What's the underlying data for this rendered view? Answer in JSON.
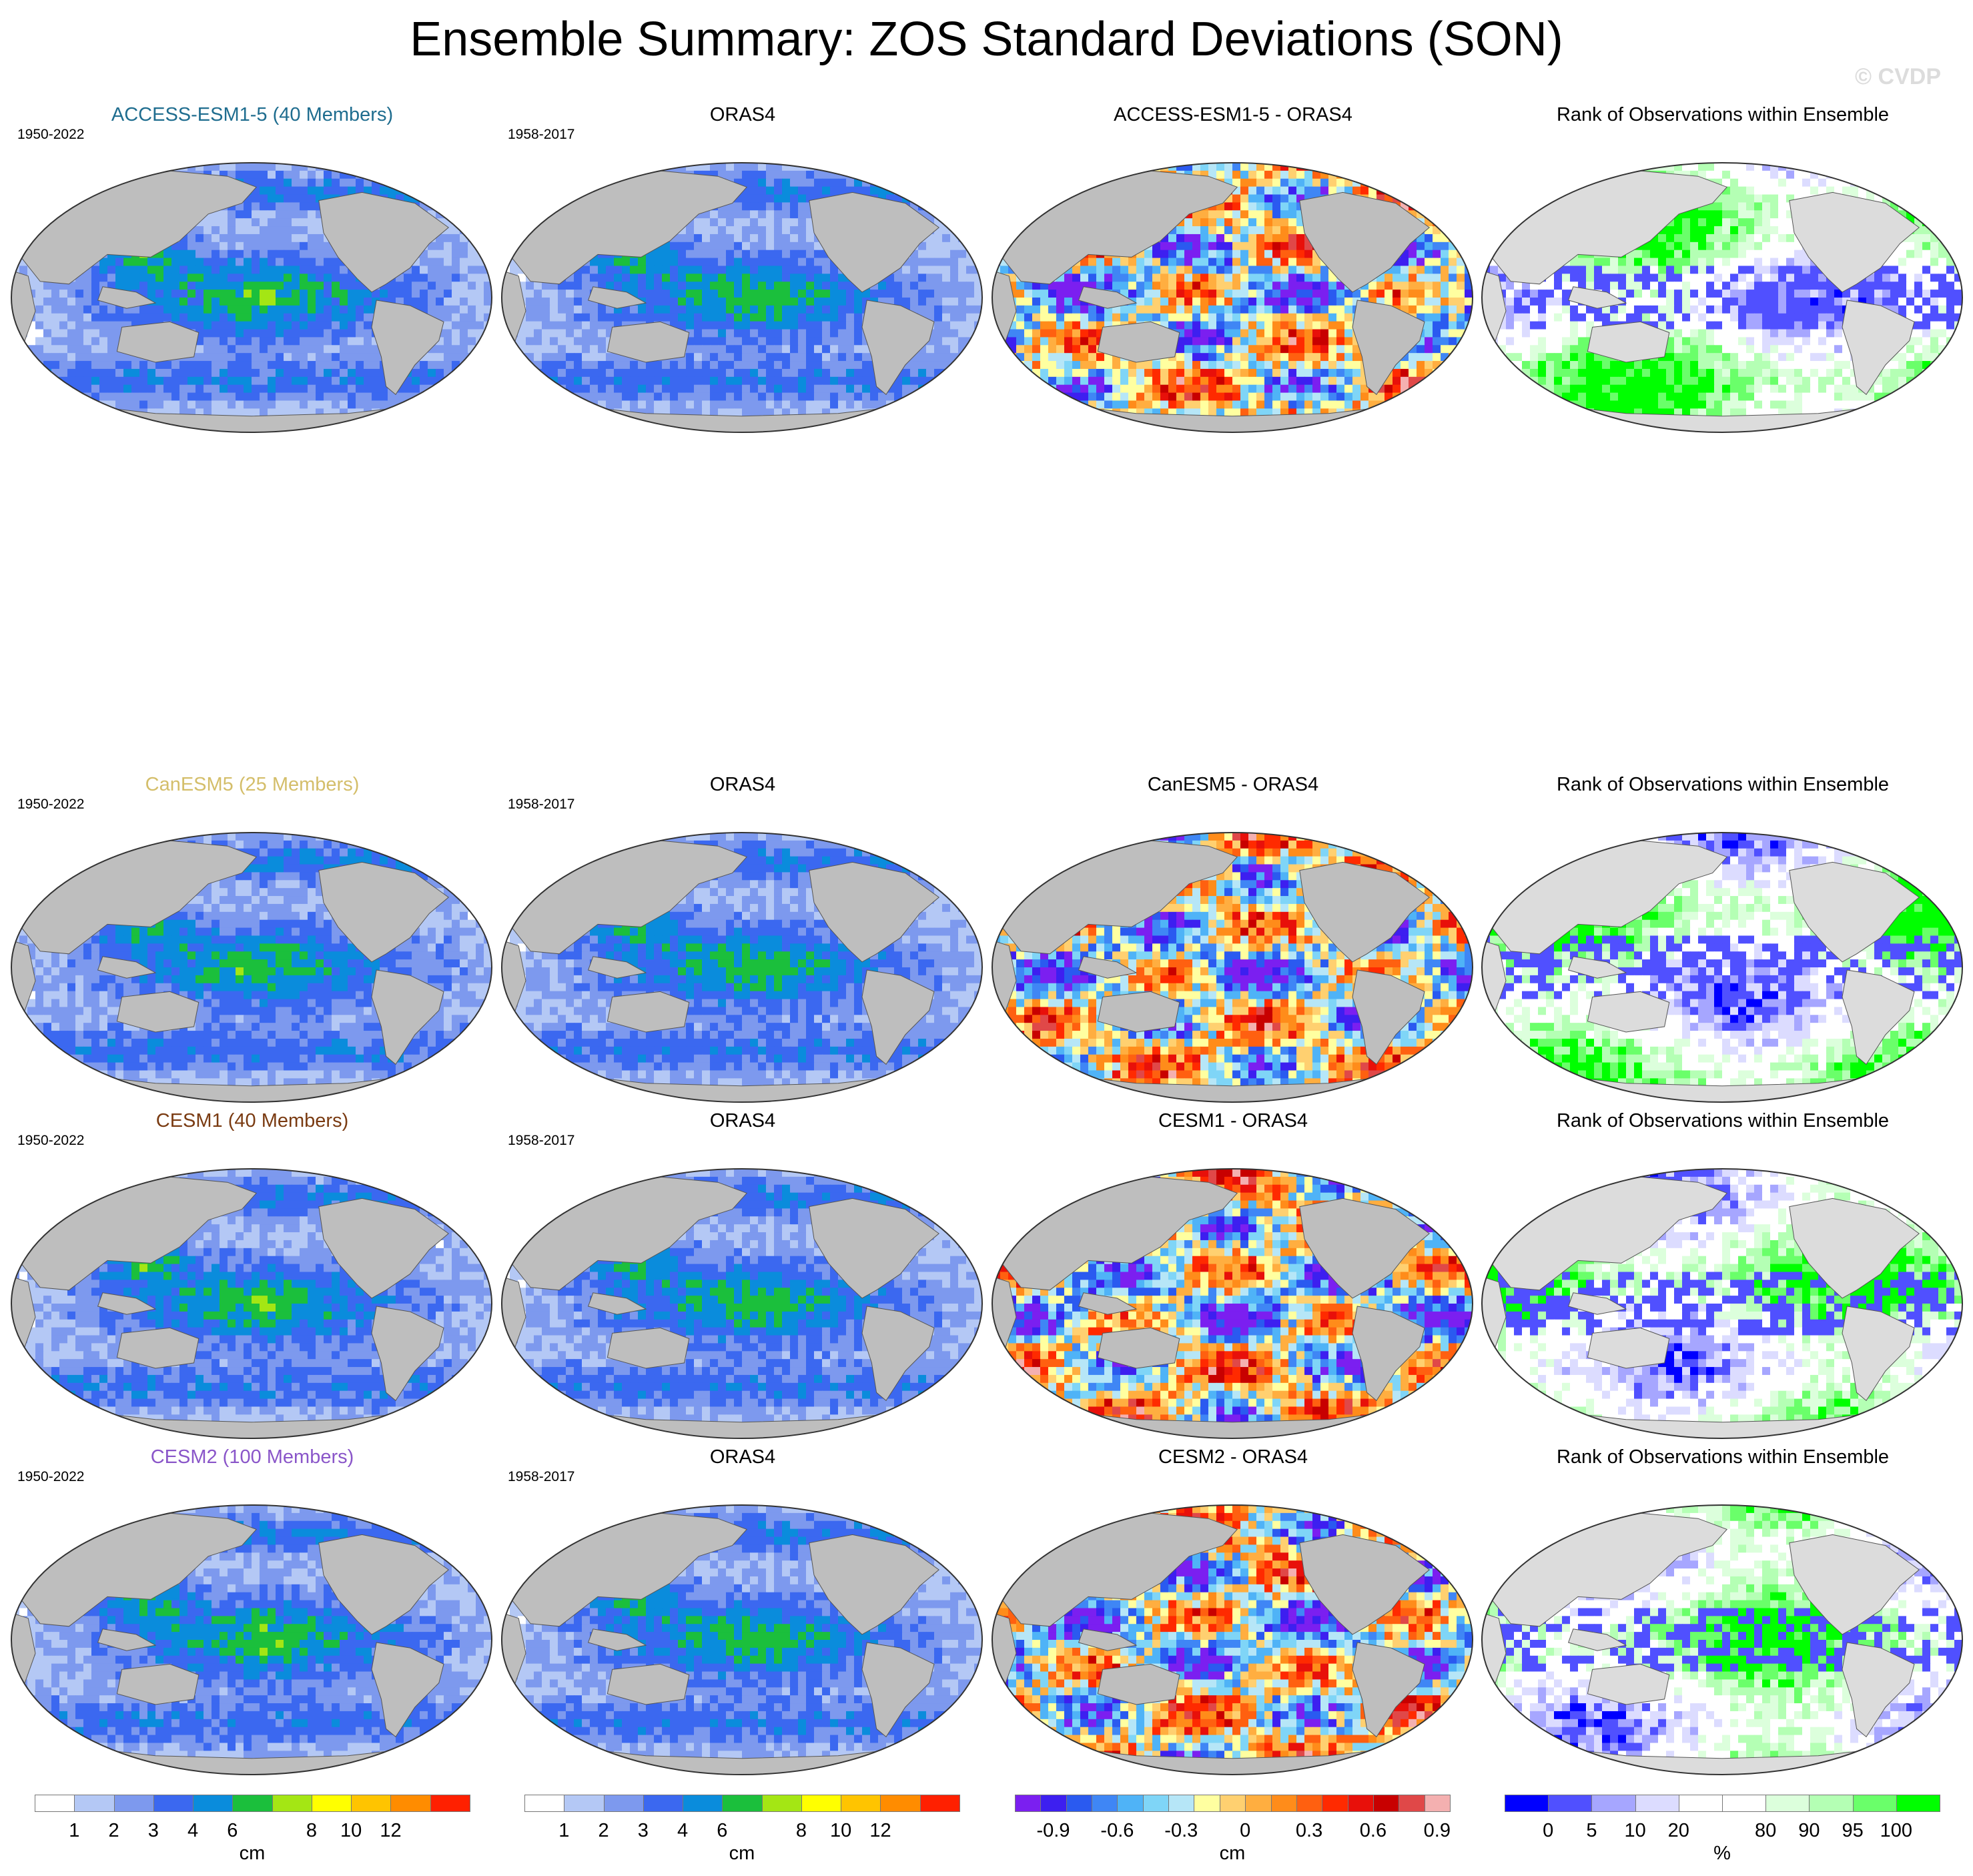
{
  "title": "Ensemble Summary: ZOS Standard Deviations (SON)",
  "watermark": "© CVDP",
  "rows": [
    {
      "panels": [
        {
          "title": "ACCESS-ESM1-5 (40 Members)",
          "title_color": "#1f6d8f",
          "period": "1950-2022",
          "type": "std",
          "dataset": "ACCESS-ESM1-5",
          "seed": 11
        },
        {
          "title": "ORAS4",
          "title_color": "#000000",
          "period": "1958-2017",
          "type": "std",
          "dataset": "ORAS4",
          "seed": 21
        },
        {
          "title": "ACCESS-ESM1-5 - ORAS4",
          "title_color": "#000000",
          "period": "",
          "type": "diff",
          "dataset": "ACCESS-ESM1-5 - ORAS4",
          "seed": 31
        },
        {
          "title": "Rank of Observations within Ensemble",
          "title_color": "#000000",
          "period": "",
          "type": "rank",
          "dataset": "ACCESS-ESM1-5 rank",
          "seed": 41
        }
      ]
    },
    {
      "panels": [
        {
          "title": "CanESM5 (25 Members)",
          "title_color": "#d4be6a",
          "period": "1950-2022",
          "type": "std",
          "dataset": "CanESM5",
          "seed": 12
        },
        {
          "title": "ORAS4",
          "title_color": "#000000",
          "period": "1958-2017",
          "type": "std",
          "dataset": "ORAS4",
          "seed": 21
        },
        {
          "title": "CanESM5 - ORAS4",
          "title_color": "#000000",
          "period": "",
          "type": "diff",
          "dataset": "CanESM5 - ORAS4",
          "seed": 32
        },
        {
          "title": "Rank of Observations within Ensemble",
          "title_color": "#000000",
          "period": "",
          "type": "rank",
          "dataset": "CanESM5 rank",
          "seed": 42
        }
      ]
    },
    {
      "panels": [
        {
          "title": "CESM1 (40 Members)",
          "title_color": "#7a3b12",
          "period": "1950-2022",
          "type": "std",
          "dataset": "CESM1",
          "seed": 13
        },
        {
          "title": "ORAS4",
          "title_color": "#000000",
          "period": "1958-2017",
          "type": "std",
          "dataset": "ORAS4",
          "seed": 21
        },
        {
          "title": "CESM1 - ORAS4",
          "title_color": "#000000",
          "period": "",
          "type": "diff",
          "dataset": "CESM1 - ORAS4",
          "seed": 33
        },
        {
          "title": "Rank of Observations within Ensemble",
          "title_color": "#000000",
          "period": "",
          "type": "rank",
          "dataset": "CESM1 rank",
          "seed": 43
        }
      ]
    },
    {
      "panels": [
        {
          "title": "CESM2 (100 Members)",
          "title_color": "#8a56c9",
          "period": "1950-2022",
          "type": "std",
          "dataset": "CESM2",
          "seed": 14
        },
        {
          "title": "ORAS4",
          "title_color": "#000000",
          "period": "1958-2017",
          "type": "std",
          "dataset": "ORAS4",
          "seed": 21
        },
        {
          "title": "CESM2 - ORAS4",
          "title_color": "#000000",
          "period": "",
          "type": "diff",
          "dataset": "CESM2 - ORAS4",
          "seed": 34
        },
        {
          "title": "Rank of Observations within Ensemble",
          "title_color": "#000000",
          "period": "",
          "type": "rank",
          "dataset": "CESM2 rank",
          "seed": 44
        }
      ]
    }
  ],
  "colorbars": [
    {
      "id": "std-model",
      "unit": "cm",
      "colors": [
        "#ffffff",
        "#b4c8f5",
        "#7d99ee",
        "#3b68f0",
        "#0a8cdc",
        "#1bbf3c",
        "#a4e614",
        "#ffff00",
        "#ffc400",
        "#ff8c00",
        "#ff2000"
      ],
      "labels": [
        "1",
        "2",
        "3",
        "4",
        "6",
        "8",
        "10",
        "12"
      ]
    },
    {
      "id": "std-obs",
      "unit": "cm",
      "colors": [
        "#ffffff",
        "#b4c8f5",
        "#7d99ee",
        "#3b68f0",
        "#0a8cdc",
        "#1bbf3c",
        "#a4e614",
        "#ffff00",
        "#ffc400",
        "#ff8c00",
        "#ff2000"
      ],
      "labels": [
        "1",
        "2",
        "3",
        "4",
        "6",
        "8",
        "10",
        "12"
      ]
    },
    {
      "id": "diff",
      "unit": "cm",
      "colors": [
        "#7b1ff0",
        "#3d1ff0",
        "#2a5af0",
        "#3f86f5",
        "#4fb3f7",
        "#7fd5f7",
        "#b6e6f7",
        "#ffffa0",
        "#ffd070",
        "#ffae40",
        "#ff8c1a",
        "#ff6010",
        "#ff2a00",
        "#e8100a",
        "#c80000",
        "#e04848",
        "#f4b0b0"
      ],
      "labels": [
        "-0.9",
        "-0.6",
        "-0.3",
        "0",
        "0.3",
        "0.6",
        "0.9"
      ]
    },
    {
      "id": "rank",
      "unit": "%",
      "colors": [
        "#0000ff",
        "#5050ff",
        "#a6a6ff",
        "#dcdcff",
        "#ffffff",
        "#ffffff",
        "#dcffdc",
        "#b4ffb4",
        "#6aff6a",
        "#00ff00"
      ],
      "labels": [
        "0",
        "5",
        "10",
        "20",
        "80",
        "90",
        "95",
        "100"
      ]
    }
  ]
}
